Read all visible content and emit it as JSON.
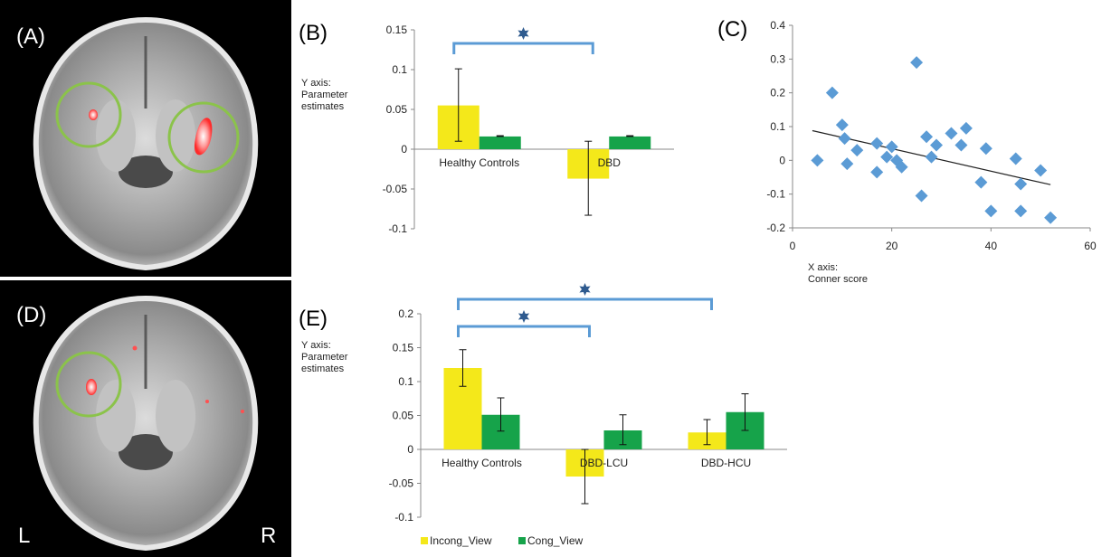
{
  "colors": {
    "incong": "#f4e81a",
    "cong": "#16a34a",
    "scatter": "#5b9bd5",
    "bracket": "#5b9bd5",
    "star": "#2f5b8f",
    "circle": "#8bc34a",
    "blob": "#ff3a3a"
  },
  "brain_panels": {
    "a_label": "(A)",
    "d_label": "(D)",
    "left_label": "L",
    "right_label": "R"
  },
  "chart_data": [
    {
      "id": "B",
      "panel_label": "(B)",
      "type": "bar",
      "categories": [
        "Healthy Controls",
        "DBD"
      ],
      "series": [
        {
          "name": "Incong_View",
          "values": [
            0.055,
            -0.037
          ],
          "err_low": [
            0.01,
            -0.083
          ],
          "err_high": [
            0.101,
            0.01
          ]
        },
        {
          "name": "Cong_View",
          "values": [
            0.016,
            0.016
          ],
          "err_low": [
            0.016,
            0.016
          ],
          "err_high": [
            0.017,
            0.017
          ]
        }
      ],
      "ylim": [
        -0.1,
        0.15
      ],
      "yticks": [
        0.15,
        0.1,
        0.05,
        0,
        -0.05,
        -0.1
      ],
      "ytick_labels": [
        "0.15",
        "0.1",
        "0.05",
        "0",
        "-0.05",
        "-0.1"
      ],
      "ylabel_lines": [
        "Y axis:",
        "Parameter",
        "estimates"
      ],
      "xlabel": "",
      "grid": false,
      "significance": [
        {
          "from": 0,
          "to": 1,
          "marker": "star"
        }
      ]
    },
    {
      "id": "C",
      "panel_label": "(C)",
      "type": "scatter",
      "points": [
        [
          5,
          0.0
        ],
        [
          8,
          0.2
        ],
        [
          10,
          0.105
        ],
        [
          10.5,
          0.065
        ],
        [
          11,
          -0.01
        ],
        [
          13,
          0.03
        ],
        [
          17,
          0.05
        ],
        [
          17,
          -0.035
        ],
        [
          19,
          0.01
        ],
        [
          20,
          0.04
        ],
        [
          21,
          0.0
        ],
        [
          22,
          -0.02
        ],
        [
          25,
          0.29
        ],
        [
          26,
          -0.105
        ],
        [
          27,
          0.07
        ],
        [
          28,
          0.01
        ],
        [
          29,
          0.045
        ],
        [
          32,
          0.08
        ],
        [
          34,
          0.045
        ],
        [
          35,
          0.095
        ],
        [
          38,
          -0.065
        ],
        [
          39,
          0.035
        ],
        [
          40,
          -0.15
        ],
        [
          45,
          0.005
        ],
        [
          46,
          -0.07
        ],
        [
          46,
          -0.15
        ],
        [
          50,
          -0.03
        ],
        [
          52,
          -0.17
        ]
      ],
      "trendline": [
        [
          4,
          0.088
        ],
        [
          52,
          -0.072
        ]
      ],
      "xlim": [
        0,
        60
      ],
      "ylim": [
        -0.2,
        0.4
      ],
      "xticks": [
        0,
        20,
        40,
        60
      ],
      "xtick_labels": [
        "0",
        "20",
        "40",
        "60"
      ],
      "yticks": [
        0.4,
        0.3,
        0.2,
        0.1,
        0,
        -0.1,
        -0.2
      ],
      "ytick_labels": [
        "0.4",
        "0.3",
        "0.2",
        "0.1",
        "0",
        "-0.1",
        "-0.2"
      ],
      "xlabel_lines": [
        "X axis:",
        "Conner score"
      ],
      "grid": false
    },
    {
      "id": "E",
      "panel_label": "(E)",
      "type": "bar",
      "categories": [
        "Healthy Controls",
        "DBD-LCU",
        "DBD-HCU"
      ],
      "series": [
        {
          "name": "Incong_View",
          "values": [
            0.12,
            -0.04,
            0.025
          ],
          "err_low": [
            0.093,
            -0.08,
            0.007
          ],
          "err_high": [
            0.147,
            0.0,
            0.044
          ]
        },
        {
          "name": "Cong_View",
          "values": [
            0.051,
            0.028,
            0.055
          ],
          "err_low": [
            0.027,
            0.007,
            0.028
          ],
          "err_high": [
            0.076,
            0.051,
            0.082
          ]
        }
      ],
      "ylim": [
        -0.1,
        0.2
      ],
      "yticks": [
        0.2,
        0.15,
        0.1,
        0.05,
        0,
        -0.05,
        -0.1
      ],
      "ytick_labels": [
        "0.2",
        "0.15",
        "0.1",
        "0.05",
        "0",
        "-0.05",
        "-0.1"
      ],
      "ylabel_lines": [
        "Y axis:",
        "Parameter",
        "estimates"
      ],
      "xlabel": "",
      "grid": false,
      "legend": [
        "Incong_View",
        "Cong_View"
      ],
      "legend_position": "bottom-left",
      "significance": [
        {
          "from": 0,
          "to": 2,
          "marker": "star"
        },
        {
          "from": 0,
          "to": 1,
          "marker": "star"
        }
      ]
    }
  ]
}
